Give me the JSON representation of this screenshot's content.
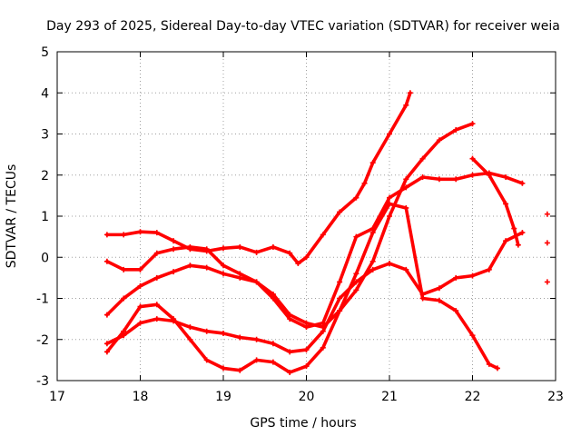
{
  "chart_data": {
    "type": "line",
    "title": "Day 293 of 2025, Sidereal Day-to-day VTEC variation (SDTVAR) for receiver weia",
    "xlabel": "GPS time / hours",
    "ylabel": "SDTVAR / TECUs",
    "xlim": [
      17,
      23
    ],
    "ylim": [
      -3,
      5
    ],
    "xticks": [
      17,
      18,
      19,
      20,
      21,
      22,
      23
    ],
    "yticks": [
      -3,
      -2,
      -1,
      0,
      1,
      2,
      3,
      4,
      5
    ],
    "grid": true,
    "marker": "plus",
    "color": "#ff0000",
    "series": [
      {
        "name": "trace-a",
        "x": [
          17.6,
          17.8,
          18.0,
          18.2,
          18.4,
          18.6,
          18.8,
          19.0,
          19.2,
          19.4,
          19.6,
          19.8,
          19.9,
          20.0,
          20.2,
          20.4,
          20.6,
          20.7,
          20.8,
          21.0,
          21.2,
          21.25
        ],
        "y": [
          0.55,
          0.55,
          0.62,
          0.6,
          0.4,
          0.2,
          0.15,
          0.22,
          0.25,
          0.12,
          0.25,
          0.1,
          -0.15,
          0.0,
          0.55,
          1.1,
          1.45,
          1.8,
          2.3,
          3.0,
          3.7,
          4.0
        ]
      },
      {
        "name": "trace-b",
        "x": [
          17.6,
          17.8,
          18.0,
          18.2,
          18.4,
          18.6,
          18.8,
          19.0,
          19.2,
          19.4,
          19.6,
          19.8,
          20.0,
          20.2,
          20.4,
          20.6,
          20.8,
          21.0,
          21.2,
          21.4,
          21.6,
          21.8,
          22.0
        ],
        "y": [
          -0.1,
          -0.3,
          -0.3,
          0.1,
          0.2,
          0.25,
          0.2,
          -0.2,
          -0.4,
          -0.6,
          -0.9,
          -1.4,
          -1.6,
          -1.7,
          -1.3,
          -0.8,
          -0.1,
          1.0,
          1.9,
          2.4,
          2.85,
          3.1,
          3.25
        ]
      },
      {
        "name": "trace-c",
        "x": [
          17.6,
          17.8,
          18.0,
          18.2,
          18.4,
          18.6,
          18.8,
          19.0,
          19.2,
          19.4,
          19.6,
          19.8,
          20.0,
          20.2,
          20.4,
          20.6,
          20.8,
          21.0,
          21.2,
          21.4,
          21.6,
          21.8,
          22.0,
          22.2,
          22.4,
          22.6
        ],
        "y": [
          -1.4,
          -1.0,
          -0.7,
          -0.5,
          -0.35,
          -0.2,
          -0.25,
          -0.4,
          -0.5,
          -0.6,
          -1.0,
          -1.5,
          -1.7,
          -1.6,
          -0.6,
          0.5,
          0.7,
          1.45,
          1.7,
          1.95,
          1.9,
          1.9,
          2.0,
          2.05,
          1.95,
          1.8
        ]
      },
      {
        "name": "trace-d",
        "x": [
          17.6,
          17.8,
          18.0,
          18.2,
          18.4,
          18.6,
          18.8,
          19.0,
          19.2,
          19.4,
          19.6,
          19.8,
          20.0,
          20.2,
          20.4,
          20.6,
          20.8,
          21.0,
          21.2,
          21.4,
          21.6,
          21.8,
          22.0,
          22.2,
          22.4,
          22.6
        ],
        "y": [
          -2.1,
          -1.9,
          -1.6,
          -1.5,
          -1.55,
          -1.7,
          -1.8,
          -1.85,
          -1.95,
          -2.0,
          -2.1,
          -2.3,
          -2.25,
          -1.8,
          -1.0,
          -0.6,
          -0.3,
          -0.15,
          -0.3,
          -0.9,
          -0.75,
          -0.5,
          -0.45,
          -0.3,
          0.4,
          0.6
        ]
      },
      {
        "name": "trace-e",
        "x": [
          17.6,
          17.8,
          18.0,
          18.2,
          18.4,
          18.6,
          18.8,
          19.0,
          19.2,
          19.4,
          19.6,
          19.8,
          20.0,
          20.2,
          20.4,
          20.6,
          20.8,
          21.0,
          21.2,
          21.4,
          21.6,
          21.8,
          22.0,
          22.2,
          22.3
        ],
        "y": [
          -2.3,
          -1.8,
          -1.2,
          -1.15,
          -1.5,
          -2.0,
          -2.5,
          -2.7,
          -2.75,
          -2.5,
          -2.55,
          -2.8,
          -2.65,
          -2.2,
          -1.3,
          -0.4,
          0.6,
          1.3,
          1.2,
          -1.0,
          -1.05,
          -1.3,
          -1.9,
          -2.6,
          -2.7
        ]
      },
      {
        "name": "trace-f",
        "x": [
          22.0,
          22.2,
          22.4,
          22.5,
          22.55
        ],
        "y": [
          2.4,
          2.0,
          1.3,
          0.7,
          0.3
        ]
      },
      {
        "name": "trace-g-points",
        "x": [
          22.9,
          22.9,
          22.9
        ],
        "y": [
          1.05,
          0.35,
          -0.6
        ]
      }
    ]
  }
}
